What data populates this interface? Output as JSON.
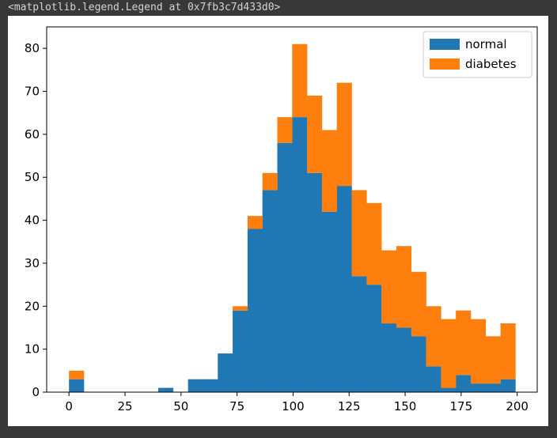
{
  "output_text": "<matplotlib.legend.Legend at 0x7fb3c7d433d0>",
  "chart_data": {
    "type": "bar",
    "histogram": true,
    "stacked": true,
    "bin_width": 6.64,
    "bins_start": 0,
    "xlim": [
      -9.95,
      208.95
    ],
    "ylim": [
      0,
      85
    ],
    "xticks": [
      0,
      25,
      50,
      75,
      100,
      125,
      150,
      175,
      200
    ],
    "yticks": [
      0,
      10,
      20,
      30,
      40,
      50,
      60,
      70,
      80
    ],
    "legend_position": "top-right",
    "series": [
      {
        "name": "normal",
        "color": "#1f77b4",
        "values": [
          3,
          0,
          0,
          0,
          0,
          0,
          1,
          0,
          3,
          3,
          9,
          19,
          38,
          47,
          58,
          64,
          51,
          42,
          48,
          27,
          25,
          16,
          15,
          13,
          6,
          1,
          4,
          2,
          2,
          3
        ]
      },
      {
        "name": "diabetes",
        "color": "#ff7f0e",
        "values": [
          2,
          0,
          0,
          0,
          0,
          0,
          0,
          0,
          0,
          0,
          0,
          1,
          3,
          4,
          6,
          17,
          18,
          19,
          24,
          20,
          19,
          17,
          19,
          15,
          14,
          16,
          15,
          15,
          11,
          13
        ]
      }
    ]
  }
}
